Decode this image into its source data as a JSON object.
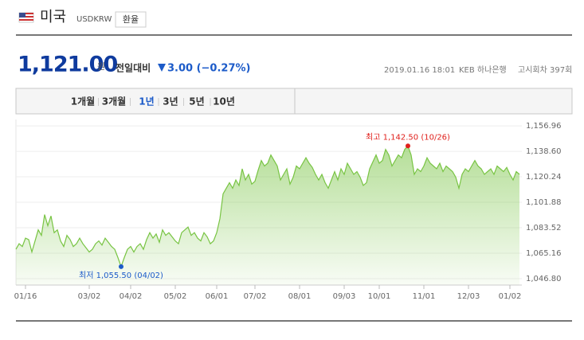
{
  "header": {
    "country": "미국",
    "code": "USDKRW",
    "button": "환율"
  },
  "quote": {
    "price": "1,121.00",
    "unit": "원",
    "compare_label": "전일대비",
    "change": "3.00 (−0.27%)",
    "datetime": "2019.01.16 18:01",
    "bank": "KEB 하나은행",
    "round": "고시회차 397회"
  },
  "tabs": {
    "items": [
      "1개월",
      "3개월",
      "1년",
      "3년",
      "5년",
      "10년"
    ],
    "selected": "1년"
  },
  "chart_data": {
    "type": "area",
    "color": "#78c443",
    "categories": [
      null,
      null,
      null,
      "01/16",
      null,
      null,
      null,
      null,
      null,
      null,
      null,
      null,
      null,
      null,
      null,
      null,
      null,
      null,
      null,
      null,
      null,
      null,
      null,
      "03/02",
      null,
      null,
      null,
      null,
      null,
      null,
      null,
      null,
      null,
      null,
      null,
      null,
      "04/02",
      null,
      null,
      null,
      null,
      null,
      null,
      null,
      null,
      null,
      null,
      null,
      null,
      null,
      "05/02",
      null,
      null,
      null,
      null,
      null,
      null,
      null,
      null,
      null,
      null,
      null,
      null,
      "06/01",
      null,
      null,
      null,
      null,
      null,
      null,
      null,
      null,
      null,
      null,
      null,
      "07/02",
      null,
      null,
      null,
      null,
      null,
      null,
      null,
      null,
      null,
      null,
      null,
      null,
      null,
      "08/01",
      null,
      null,
      null,
      null,
      null,
      null,
      null,
      null,
      null,
      null,
      null,
      null,
      null,
      "09/03",
      null,
      null,
      null,
      null,
      null,
      null,
      null,
      null,
      null,
      null,
      "10/01",
      null,
      null,
      null,
      null,
      null,
      null,
      null,
      null,
      null,
      null,
      null,
      null,
      null,
      "11/01",
      null,
      null,
      null,
      null,
      null,
      null,
      null,
      null,
      null,
      null,
      null,
      null,
      null,
      "12/03",
      null,
      null,
      null,
      null,
      null,
      null,
      null,
      null,
      null,
      null,
      null,
      null,
      "01/02",
      null,
      null,
      null
    ],
    "values": [
      1068,
      1072,
      1070,
      1076,
      1075,
      1066,
      1074,
      1082,
      1078,
      1093,
      1085,
      1092,
      1080,
      1082,
      1074,
      1070,
      1078,
      1075,
      1070,
      1072,
      1076,
      1072,
      1069,
      1066,
      1068,
      1072,
      1074,
      1071,
      1076,
      1073,
      1070,
      1068,
      1062,
      1055.5,
      1062,
      1068,
      1070,
      1066,
      1070,
      1072,
      1068,
      1075,
      1080,
      1076,
      1079,
      1073,
      1082,
      1078,
      1080,
      1077,
      1074,
      1072,
      1080,
      1082,
      1084,
      1078,
      1080,
      1076,
      1074,
      1080,
      1077,
      1072,
      1074,
      1080,
      1090,
      1108,
      1112,
      1116,
      1112,
      1118,
      1114,
      1126,
      1118,
      1122,
      1115,
      1117,
      1125,
      1132,
      1128,
      1130,
      1136,
      1132,
      1128,
      1118,
      1122,
      1126,
      1115,
      1120,
      1128,
      1126,
      1130,
      1134,
      1130,
      1127,
      1122,
      1118,
      1122,
      1116,
      1112,
      1118,
      1124,
      1118,
      1126,
      1122,
      1130,
      1126,
      1122,
      1124,
      1120,
      1114,
      1116,
      1126,
      1131,
      1136,
      1130,
      1132,
      1140,
      1136,
      1128,
      1132,
      1136,
      1134,
      1140,
      1142.5,
      1136,
      1122,
      1126,
      1124,
      1128,
      1134,
      1130,
      1128,
      1126,
      1130,
      1124,
      1128,
      1126,
      1124,
      1120,
      1112,
      1122,
      1126,
      1124,
      1128,
      1132,
      1128,
      1126,
      1122,
      1124,
      1126,
      1122,
      1128,
      1126,
      1124,
      1127,
      1122,
      1118,
      1124,
      1122
    ],
    "ylim": [
      1042.2,
      1161.6
    ],
    "yticks": [
      {
        "value": 1156.96,
        "label": "1,156.96"
      },
      {
        "value": 1138.6,
        "label": "1,138.60"
      },
      {
        "value": 1120.24,
        "label": "1,120.24"
      },
      {
        "value": 1101.88,
        "label": "1,101.88"
      },
      {
        "value": 1083.52,
        "label": "1,083.52"
      },
      {
        "value": 1065.16,
        "label": "1,065.16"
      },
      {
        "value": 1046.8,
        "label": "1,046.80"
      }
    ],
    "grid": true,
    "annotations": {
      "high": {
        "text": "최고 1,142.50 (10/26)",
        "color": "#e0201c"
      },
      "low": {
        "text": "최저 1,055.50 (04/02)",
        "color": "#1c5bc9"
      }
    }
  }
}
